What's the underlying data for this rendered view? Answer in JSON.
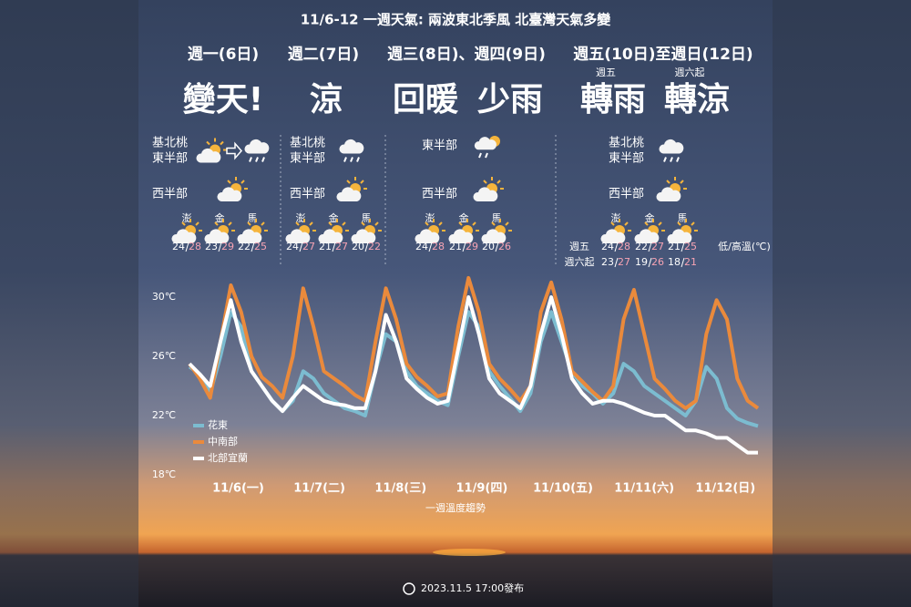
{
  "title": "11/6-12 一週天氣: 兩波東北季風 北臺灣天氣多變",
  "sections": [
    {
      "header": "週一(6日)",
      "headline": [
        "變天!"
      ],
      "notes": [],
      "regions": [
        [
          "基北桃",
          "東半部"
        ],
        [
          "西半部"
        ]
      ],
      "islands": [
        {
          "name": "澎",
          "temps": [
            {
              "low": 24,
              "high": 28
            }
          ]
        },
        {
          "name": "金",
          "temps": [
            {
              "low": 23,
              "high": 29
            }
          ]
        },
        {
          "name": "馬",
          "temps": [
            {
              "low": 22,
              "high": 25
            }
          ]
        }
      ]
    },
    {
      "header": "週二(7日)",
      "headline": [
        "涼"
      ],
      "notes": [],
      "regions": [
        [
          "基北桃",
          "東半部"
        ],
        [
          "西半部"
        ]
      ],
      "islands": [
        {
          "name": "澎",
          "temps": [
            {
              "low": 24,
              "high": 27
            }
          ]
        },
        {
          "name": "金",
          "temps": [
            {
              "low": 21,
              "high": 27
            }
          ]
        },
        {
          "name": "馬",
          "temps": [
            {
              "low": 20,
              "high": 22
            }
          ]
        }
      ]
    },
    {
      "header": "週三(8日)、週四(9日)",
      "headline": [
        "回暖",
        "少雨"
      ],
      "notes": [],
      "regions": [
        [
          "東半部"
        ],
        [
          "西半部"
        ]
      ],
      "islands": [
        {
          "name": "澎",
          "temps": [
            {
              "low": 24,
              "high": 28
            }
          ]
        },
        {
          "name": "金",
          "temps": [
            {
              "low": 21,
              "high": 29
            }
          ]
        },
        {
          "name": "馬",
          "temps": [
            {
              "low": 20,
              "high": 26
            }
          ]
        }
      ]
    },
    {
      "header": "週五(10日)至週日(12日)",
      "headline": [
        "轉雨",
        "轉涼"
      ],
      "notes": [
        "週五",
        "週六起"
      ],
      "regions": [
        [
          "基北桃",
          "東半部"
        ],
        [
          "西半部"
        ]
      ],
      "row_labels": [
        "週五",
        "週六起"
      ],
      "islands": [
        {
          "name": "澎",
          "temps": [
            {
              "low": 24,
              "high": 28
            },
            {
              "low": 23,
              "high": 27
            }
          ]
        },
        {
          "name": "金",
          "temps": [
            {
              "low": 22,
              "high": 27
            },
            {
              "low": 19,
              "high": 26
            }
          ]
        },
        {
          "name": "馬",
          "temps": [
            {
              "low": 21,
              "high": 25
            },
            {
              "low": 18,
              "high": 21
            }
          ]
        }
      ]
    }
  ],
  "temp_legend": "低/高溫(℃)",
  "chart_data": {
    "type": "line",
    "x_labels": [
      "11/6(一)",
      "11/7(二)",
      "11/8(三)",
      "11/9(四)",
      "11/10(五)",
      "11/11(六)",
      "11/12(日)"
    ],
    "xlabel": "一週溫度趨勢",
    "ylim": [
      18,
      31.8
    ],
    "yticks": [
      {
        "value": 18,
        "label": "18℃"
      },
      {
        "value": 22,
        "label": "22℃"
      },
      {
        "value": 26,
        "label": "26℃"
      },
      {
        "value": 30,
        "label": "30℃"
      }
    ],
    "series": [
      {
        "name": "花東",
        "color": "#7cbcd0",
        "values": [
          25.3,
          24.8,
          23.5,
          26,
          29,
          28,
          25,
          24,
          23,
          22.3,
          23,
          25,
          24.5,
          23.5,
          23,
          22.5,
          22.3,
          22,
          25,
          27.5,
          27,
          25,
          24,
          23.5,
          23,
          22.7,
          26,
          29,
          28,
          25,
          24,
          23.2,
          22.3,
          23.5,
          27,
          29,
          27,
          25,
          24,
          23.5,
          22.8,
          23.5,
          25.5,
          25,
          24,
          23.5,
          23,
          22.5,
          22,
          23,
          25.3,
          24.5,
          22.5,
          21.8,
          21.5,
          21.3
        ]
      },
      {
        "name": "中南部",
        "color": "#ea8a3c",
        "values": [
          25.5,
          24.5,
          23.2,
          27,
          30.8,
          29,
          26,
          24.6,
          24,
          23.2,
          26,
          30.6,
          28,
          25,
          24.5,
          24,
          23.4,
          23,
          27,
          30.6,
          28.5,
          25.5,
          24.6,
          24,
          23.3,
          23.5,
          28,
          31.3,
          29,
          25.5,
          24.5,
          23.8,
          23,
          24,
          29,
          31,
          28.5,
          25,
          24.3,
          23.6,
          23,
          24,
          28.5,
          30.5,
          27.5,
          24.5,
          23.8,
          23,
          22.5,
          23,
          27.5,
          29.8,
          28.5,
          24.5,
          23,
          22.5
        ]
      },
      {
        "name": "北部宜蘭",
        "color": "#ffffff",
        "values": [
          25.5,
          24.8,
          24,
          27,
          29.8,
          27,
          25,
          24,
          23,
          22.3,
          23.2,
          24,
          23.5,
          23,
          22.8,
          22.7,
          22.5,
          22.5,
          25,
          28.8,
          27,
          24.5,
          23.8,
          23.2,
          22.8,
          23,
          26.5,
          30,
          27.5,
          24.5,
          23.5,
          23,
          22.5,
          24,
          27.5,
          30,
          27.5,
          24.5,
          23.5,
          22.8,
          23,
          23,
          22.8,
          22.5,
          22.2,
          22,
          22,
          21.5,
          21,
          21,
          20.8,
          20.5,
          20.5,
          20,
          19.5,
          19.5
        ]
      }
    ]
  },
  "footer": "2023.11.5 17:00發布"
}
